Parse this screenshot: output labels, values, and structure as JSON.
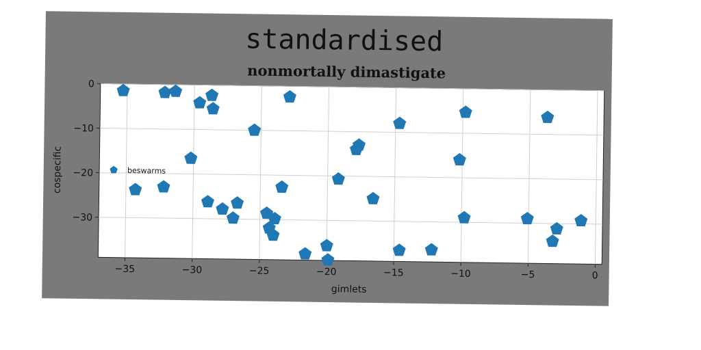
{
  "chart_data": {
    "type": "scatter",
    "suptitle": "standardised",
    "title": "nonmortally dimastigate",
    "xlabel": "gimlets",
    "ylabel": "cospecific",
    "xlim": [
      -37,
      0.5
    ],
    "ylim": [
      -39,
      0
    ],
    "xticks": [
      -35,
      -30,
      -25,
      -20,
      -15,
      -10,
      -5,
      0
    ],
    "yticks": [
      0,
      -10,
      -20,
      -30
    ],
    "grid": true,
    "legend_position": "center-left",
    "marker": "pentagon",
    "colors": {
      "marker": "#1f77b4",
      "figure_background": "#7a7a7a",
      "axes_background": "#ffffff",
      "grid": "#cfcfcf"
    },
    "series": [
      {
        "name": "beswarms",
        "points": [
          [
            -35.3,
            -1.5
          ],
          [
            -32.2,
            -1.8
          ],
          [
            -31.4,
            -1.5
          ],
          [
            -28.7,
            -2.3
          ],
          [
            -29.6,
            -4.0
          ],
          [
            -28.6,
            -5.3
          ],
          [
            -22.9,
            -2.4
          ],
          [
            -25.5,
            -10.0
          ],
          [
            -30.2,
            -16.5
          ],
          [
            -34.3,
            -23.7
          ],
          [
            -32.2,
            -23.0
          ],
          [
            -28.9,
            -26.2
          ],
          [
            -27.8,
            -27.8
          ],
          [
            -26.7,
            -26.4
          ],
          [
            -27.0,
            -29.8
          ],
          [
            -24.5,
            -28.6
          ],
          [
            -23.9,
            -29.8
          ],
          [
            -24.3,
            -31.9
          ],
          [
            -24.0,
            -33.5
          ],
          [
            -23.4,
            -22.7
          ],
          [
            -21.6,
            -37.6
          ],
          [
            -20.0,
            -35.7
          ],
          [
            -19.9,
            -38.9
          ],
          [
            -19.2,
            -20.7
          ],
          [
            -17.7,
            -13.0
          ],
          [
            -17.9,
            -14.0
          ],
          [
            -16.6,
            -25.0
          ],
          [
            -14.7,
            -8.0
          ],
          [
            -14.6,
            -36.5
          ],
          [
            -12.2,
            -36.3
          ],
          [
            -9.8,
            -5.3
          ],
          [
            -10.2,
            -16.0
          ],
          [
            -9.8,
            -29.0
          ],
          [
            -3.7,
            -6.2
          ],
          [
            -5.1,
            -29.0
          ],
          [
            -2.9,
            -31.2
          ],
          [
            -3.2,
            -34.0
          ],
          [
            -1.1,
            -29.3
          ]
        ]
      }
    ]
  }
}
